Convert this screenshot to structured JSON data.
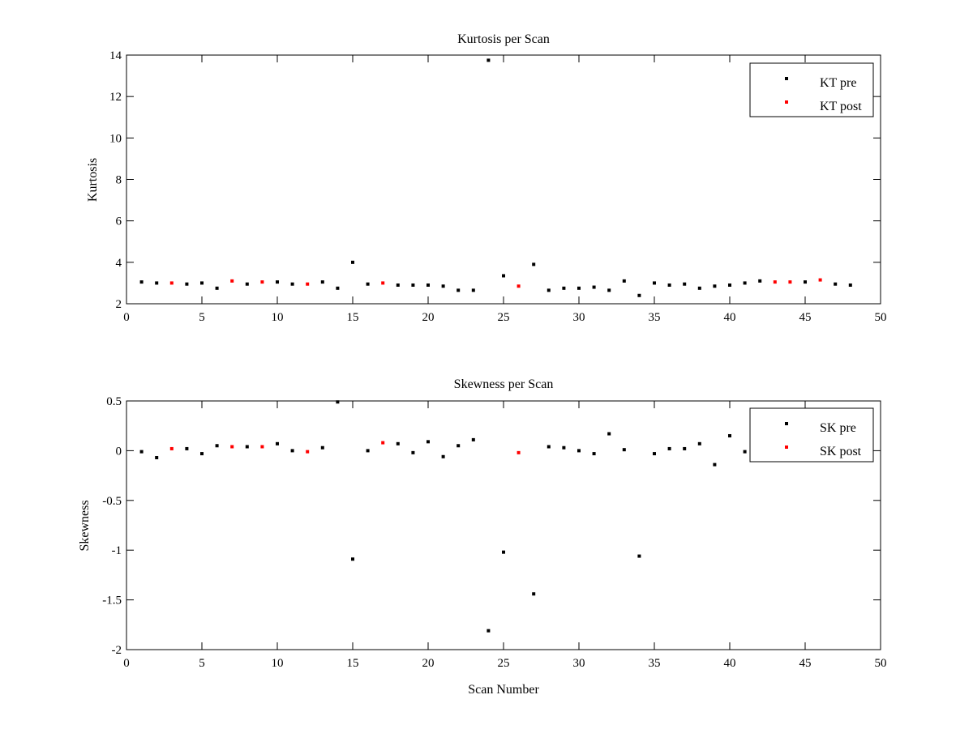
{
  "chart_data": [
    {
      "type": "scatter",
      "title": "Kurtosis per Scan",
      "xlabel": "",
      "ylabel": "Kurtosis",
      "xlim": [
        0,
        50
      ],
      "ylim": [
        2,
        14
      ],
      "xticks": [
        0,
        5,
        10,
        15,
        20,
        25,
        30,
        35,
        40,
        45,
        50
      ],
      "yticks": [
        2,
        4,
        6,
        8,
        10,
        12,
        14
      ],
      "grid": false,
      "legend": "top-right",
      "series": [
        {
          "name": "KT pre",
          "color": "#000000",
          "x": [
            1,
            2,
            4,
            5,
            6,
            8,
            10,
            11,
            13,
            14,
            15,
            16,
            18,
            19,
            20,
            21,
            22,
            23,
            24,
            25,
            27,
            28,
            29,
            30,
            31,
            32,
            33,
            34,
            35,
            36,
            37,
            38,
            39,
            40,
            41,
            42,
            45,
            47,
            48
          ],
          "y": [
            3.05,
            3.0,
            2.95,
            3.0,
            2.75,
            2.95,
            3.05,
            2.95,
            3.05,
            2.75,
            4.0,
            2.95,
            2.9,
            2.9,
            2.9,
            2.85,
            2.65,
            2.65,
            13.75,
            3.35,
            3.9,
            2.65,
            2.75,
            2.75,
            2.8,
            2.65,
            3.1,
            2.4,
            3.0,
            2.9,
            2.95,
            2.75,
            2.85,
            2.9,
            3.0,
            3.1,
            3.05,
            2.95,
            2.9
          ]
        },
        {
          "name": "KT post",
          "color": "#ff0000",
          "x": [
            3,
            7,
            9,
            12,
            17,
            26,
            43,
            44,
            46
          ],
          "y": [
            3.0,
            3.1,
            3.05,
            2.95,
            3.0,
            2.85,
            3.05,
            3.05,
            3.15
          ]
        }
      ]
    },
    {
      "type": "scatter",
      "title": "Skewness per Scan",
      "xlabel": "Scan Number",
      "ylabel": "Skewness",
      "xlim": [
        0,
        50
      ],
      "ylim": [
        -2,
        0.5
      ],
      "xticks": [
        0,
        5,
        10,
        15,
        20,
        25,
        30,
        35,
        40,
        45,
        50
      ],
      "yticks": [
        -2,
        -1.5,
        -1,
        -0.5,
        0,
        0.5
      ],
      "grid": false,
      "legend": "top-right",
      "series": [
        {
          "name": "SK pre",
          "color": "#000000",
          "x": [
            1,
            2,
            4,
            5,
            6,
            8,
            10,
            11,
            13,
            14,
            15,
            16,
            18,
            19,
            20,
            21,
            22,
            23,
            24,
            25,
            27,
            28,
            29,
            30,
            31,
            32,
            33,
            34,
            35,
            36,
            37,
            38,
            39,
            40,
            41
          ],
          "y": [
            -0.01,
            -0.07,
            0.02,
            -0.03,
            0.05,
            0.04,
            0.07,
            0.0,
            0.03,
            0.49,
            -1.09,
            0.0,
            0.07,
            -0.02,
            0.09,
            -0.06,
            0.05,
            0.11,
            -1.81,
            -1.02,
            -1.44,
            0.04,
            0.03,
            0.0,
            -0.03,
            0.17,
            0.01,
            -1.06,
            -0.03,
            0.02,
            0.02,
            0.07,
            -0.14,
            0.15,
            -0.01
          ]
        },
        {
          "name": "SK post",
          "color": "#ff0000",
          "x": [
            3,
            7,
            9,
            12,
            17,
            26
          ],
          "y": [
            0.02,
            0.04,
            0.04,
            -0.01,
            0.08,
            -0.02
          ]
        }
      ]
    }
  ]
}
